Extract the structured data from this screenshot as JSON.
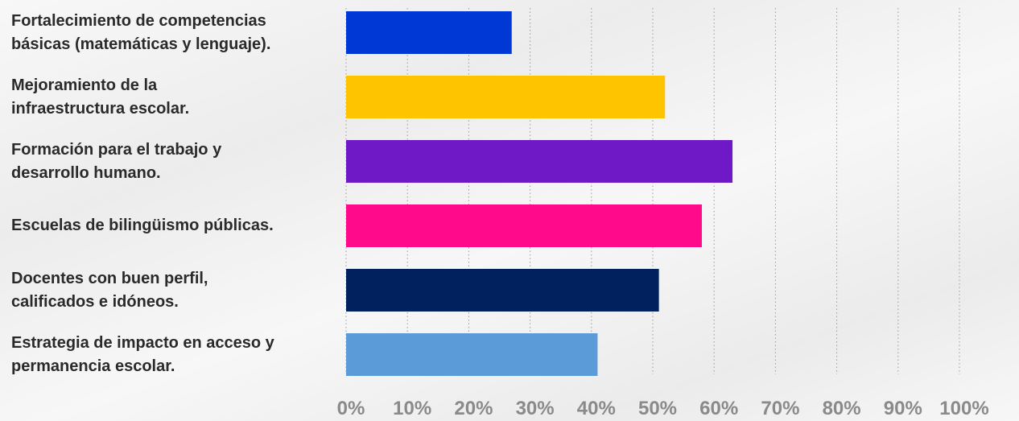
{
  "chart_data": {
    "type": "bar",
    "orientation": "horizontal",
    "categories": [
      "Fortalecimiento de competencias\nbásicas (matemáticas y lenguaje).",
      "Mejoramiento de la\ninfraestructura escolar.",
      "Formación para el trabajo y\ndesarrollo humano.",
      "Escuelas de bilingüismo públicas.",
      "Docentes con buen perfil,\ncalificados e idóneos.",
      "Estrategia de impacto en acceso y\npermanencia escolar."
    ],
    "values": [
      27,
      52,
      63,
      58,
      51,
      41
    ],
    "colors": [
      "#0038d6",
      "#ffc400",
      "#6e18c6",
      "#ff0a8a",
      "#00205e",
      "#5b9bd8"
    ],
    "xlim": [
      0,
      100
    ],
    "xticks": [
      "0%",
      "10%",
      "20%",
      "30%",
      "40%",
      "50%",
      "60%",
      "70%",
      "80%",
      "90%",
      "100%"
    ],
    "grid": "vertical dotted",
    "title": "",
    "xlabel": "",
    "ylabel": ""
  }
}
